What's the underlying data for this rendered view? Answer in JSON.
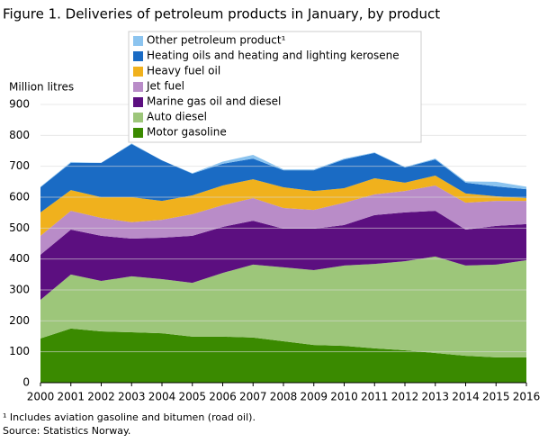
{
  "chart_data": {
    "type": "stacked_area",
    "title": "Figure 1. Deliveries of petroleum products in January, by product",
    "y_label": "Million litres",
    "footnote": "¹ Includes aviation gasoline and bitumen (road oil).",
    "source": "Source: Statistics Norway.",
    "categories": [
      "2000",
      "2001",
      "2002",
      "2003",
      "2004",
      "2005",
      "2006",
      "2007",
      "2008",
      "2009",
      "2010",
      "2011",
      "2012",
      "2013",
      "2014",
      "2015",
      "2016"
    ],
    "series": [
      {
        "name": "Motor gasoline",
        "color": "#3a8a00",
        "values": [
          143,
          175,
          166,
          163,
          160,
          149,
          149,
          146,
          134,
          122,
          119,
          111,
          105,
          96,
          87,
          82,
          82
        ]
      },
      {
        "name": "Auto diesel",
        "color": "#9dc67a",
        "values": [
          125,
          175,
          163,
          181,
          175,
          174,
          206,
          236,
          239,
          242,
          260,
          273,
          288,
          312,
          292,
          300,
          314
        ]
      },
      {
        "name": "Marine gas oil and diesel",
        "color": "#5c0f80",
        "values": [
          146,
          145,
          146,
          122,
          134,
          152,
          149,
          142,
          125,
          134,
          131,
          158,
          158,
          148,
          116,
          125,
          117
        ]
      },
      {
        "name": "Jet fuel",
        "color": "#b98cc8",
        "values": [
          61,
          61,
          58,
          53,
          58,
          70,
          70,
          73,
          67,
          61,
          72,
          67,
          69,
          82,
          87,
          81,
          75
        ]
      },
      {
        "name": "Heavy fuel oil",
        "color": "#f0b11d",
        "values": [
          76,
          67,
          67,
          81,
          61,
          61,
          64,
          61,
          67,
          61,
          47,
          52,
          27,
          32,
          30,
          15,
          9
        ]
      },
      {
        "name": "Heating oils and heating and lighting kerosene",
        "color": "#1a6bc4",
        "values": [
          81,
          88,
          111,
          172,
          131,
          70,
          70,
          67,
          55,
          67,
          93,
          82,
          49,
          52,
          35,
          32,
          29
        ]
      },
      {
        "name": "Other petroleum product¹",
        "color": "#8cc4ef",
        "values": [
          2,
          3,
          0,
          2,
          0,
          2,
          7,
          12,
          3,
          3,
          3,
          2,
          2,
          3,
          4,
          15,
          8
        ]
      }
    ],
    "ylim": [
      0,
      900
    ],
    "yticks": [
      0,
      100,
      200,
      300,
      400,
      500,
      600,
      700,
      800,
      900
    ],
    "grid": true
  }
}
